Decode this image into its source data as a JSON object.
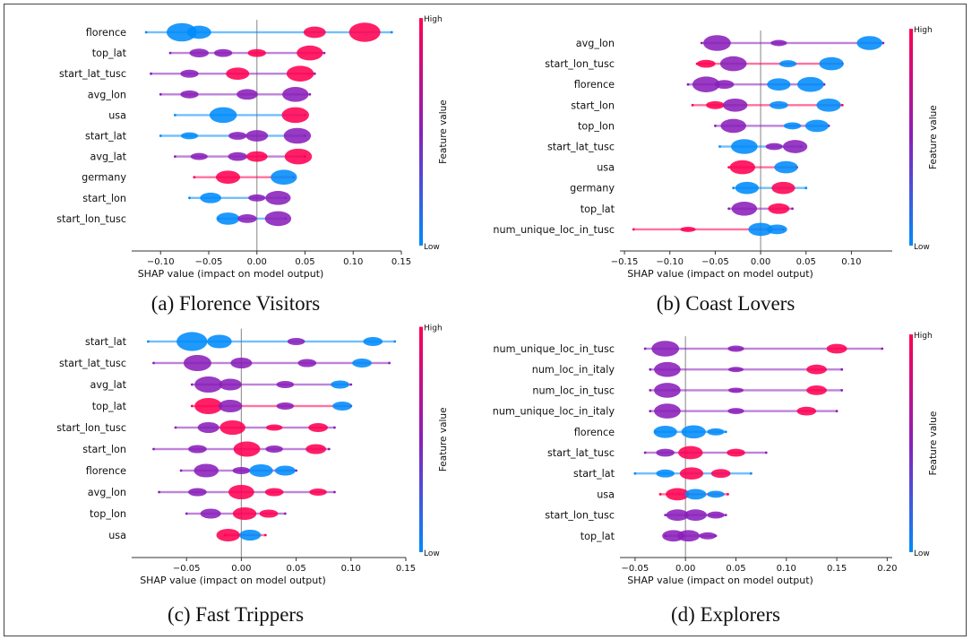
{
  "colors": {
    "high": "#ff0052",
    "low": "#008bfb",
    "mid": "#8a1fb9",
    "axis": "#333333",
    "zero": "#999999"
  },
  "chart_data": [
    {
      "type": "violin",
      "caption": "(a) Florence Visitors",
      "xlabel": "SHAP value (impact on model output)",
      "colorbar": {
        "label": "Feature value",
        "high": "High",
        "low": "Low"
      },
      "xlim": [
        -0.13,
        0.15
      ],
      "xticks": [
        -0.1,
        -0.05,
        0.0,
        0.05,
        0.1,
        0.15
      ],
      "xtick_labels": [
        "−0.10",
        "−0.05",
        "0.00",
        "0.05",
        "0.10",
        "0.15"
      ],
      "features": [
        {
          "name": "florence",
          "min": -0.115,
          "max": 0.14,
          "peaks": [
            [
              -0.078,
              0.9,
              "low"
            ],
            [
              -0.06,
              0.6,
              "low"
            ],
            [
              0.06,
              0.5,
              "high"
            ],
            [
              0.112,
              0.95,
              "high"
            ]
          ]
        },
        {
          "name": "top_lat",
          "min": -0.09,
          "max": 0.07,
          "peaks": [
            [
              -0.06,
              0.35,
              "mid"
            ],
            [
              -0.035,
              0.3,
              "mid"
            ],
            [
              0.0,
              0.3,
              "high"
            ],
            [
              0.055,
              0.7,
              "high"
            ]
          ]
        },
        {
          "name": "start_lat_tusc",
          "min": -0.11,
          "max": 0.06,
          "peaks": [
            [
              -0.07,
              0.3,
              "mid"
            ],
            [
              -0.02,
              0.55,
              "high"
            ],
            [
              0.045,
              0.75,
              "high"
            ]
          ]
        },
        {
          "name": "avg_lon",
          "min": -0.1,
          "max": 0.055,
          "peaks": [
            [
              -0.07,
              0.3,
              "mid"
            ],
            [
              -0.01,
              0.45,
              "mid"
            ],
            [
              0.04,
              0.7,
              "mid"
            ]
          ]
        },
        {
          "name": "usa",
          "min": -0.085,
          "max": 0.05,
          "peaks": [
            [
              -0.035,
              0.75,
              "low"
            ],
            [
              0.04,
              0.75,
              "high"
            ]
          ]
        },
        {
          "name": "start_lat",
          "min": -0.1,
          "max": 0.05,
          "peaks": [
            [
              -0.07,
              0.25,
              "low"
            ],
            [
              -0.02,
              0.3,
              "mid"
            ],
            [
              0.0,
              0.5,
              "mid"
            ],
            [
              0.042,
              0.75,
              "mid"
            ]
          ]
        },
        {
          "name": "avg_lat",
          "min": -0.085,
          "max": 0.05,
          "peaks": [
            [
              -0.06,
              0.25,
              "mid"
            ],
            [
              -0.02,
              0.35,
              "mid"
            ],
            [
              0.0,
              0.45,
              "high"
            ],
            [
              0.043,
              0.75,
              "high"
            ]
          ]
        },
        {
          "name": "germany",
          "min": -0.065,
          "max": 0.038,
          "peaks": [
            [
              -0.03,
              0.6,
              "high"
            ],
            [
              0.028,
              0.7,
              "low"
            ]
          ]
        },
        {
          "name": "start_lon",
          "min": -0.07,
          "max": 0.03,
          "peaks": [
            [
              -0.048,
              0.45,
              "low"
            ],
            [
              0.0,
              0.25,
              "mid"
            ],
            [
              0.022,
              0.65,
              "mid"
            ]
          ]
        },
        {
          "name": "start_lon_tusc",
          "min": -0.04,
          "max": 0.03,
          "peaks": [
            [
              -0.03,
              0.55,
              "low"
            ],
            [
              -0.01,
              0.35,
              "mid"
            ],
            [
              0.022,
              0.7,
              "mid"
            ]
          ]
        }
      ]
    },
    {
      "type": "violin",
      "caption": "(b) Coast Lovers",
      "xlabel": "SHAP value (impact on model output)",
      "colorbar": {
        "label": "Feature value",
        "high": "High",
        "low": "Low"
      },
      "xlim": [
        -0.155,
        0.145
      ],
      "xticks": [
        -0.15,
        -0.1,
        -0.05,
        0.0,
        0.05,
        0.1
      ],
      "xtick_labels": [
        "−0.15",
        "−0.10",
        "−0.05",
        "0.00",
        "0.05",
        "0.10"
      ],
      "features": [
        {
          "name": "avg_lon",
          "min": -0.065,
          "max": 0.135,
          "peaks": [
            [
              -0.048,
              0.75,
              "mid"
            ],
            [
              0.02,
              0.2,
              "mid"
            ],
            [
              0.12,
              0.65,
              "low"
            ]
          ]
        },
        {
          "name": "start_lon_tusc",
          "min": -0.07,
          "max": 0.09,
          "peaks": [
            [
              -0.06,
              0.3,
              "high"
            ],
            [
              -0.03,
              0.7,
              "mid"
            ],
            [
              0.03,
              0.25,
              "low"
            ],
            [
              0.078,
              0.6,
              "low"
            ]
          ]
        },
        {
          "name": "florence",
          "min": -0.08,
          "max": 0.07,
          "peaks": [
            [
              -0.06,
              0.75,
              "mid"
            ],
            [
              -0.04,
              0.35,
              "mid"
            ],
            [
              0.02,
              0.55,
              "low"
            ],
            [
              0.055,
              0.7,
              "low"
            ]
          ]
        },
        {
          "name": "start_lon",
          "min": -0.075,
          "max": 0.09,
          "peaks": [
            [
              -0.05,
              0.3,
              "high"
            ],
            [
              -0.028,
              0.6,
              "mid"
            ],
            [
              0.02,
              0.3,
              "low"
            ],
            [
              0.075,
              0.6,
              "low"
            ]
          ]
        },
        {
          "name": "top_lon",
          "min": -0.05,
          "max": 0.075,
          "peaks": [
            [
              -0.03,
              0.65,
              "mid"
            ],
            [
              0.035,
              0.25,
              "low"
            ],
            [
              0.062,
              0.55,
              "low"
            ]
          ]
        },
        {
          "name": "start_lat_tusc",
          "min": -0.045,
          "max": 0.045,
          "peaks": [
            [
              -0.018,
              0.7,
              "low"
            ],
            [
              0.015,
              0.25,
              "mid"
            ],
            [
              0.038,
              0.6,
              "mid"
            ]
          ]
        },
        {
          "name": "usa",
          "min": -0.035,
          "max": 0.04,
          "peaks": [
            [
              -0.02,
              0.65,
              "high"
            ],
            [
              0.028,
              0.55,
              "low"
            ]
          ]
        },
        {
          "name": "germany",
          "min": -0.03,
          "max": 0.05,
          "peaks": [
            [
              -0.015,
              0.55,
              "low"
            ],
            [
              0.025,
              0.55,
              "high"
            ]
          ]
        },
        {
          "name": "top_lat",
          "min": -0.035,
          "max": 0.035,
          "peaks": [
            [
              -0.018,
              0.65,
              "mid"
            ],
            [
              0.02,
              0.45,
              "high"
            ]
          ]
        },
        {
          "name": "num_unique_loc_in_tusc",
          "min": -0.14,
          "max": 0.025,
          "peaks": [
            [
              -0.08,
              0.15,
              "high"
            ],
            [
              0.0,
              0.6,
              "low"
            ],
            [
              0.018,
              0.4,
              "low"
            ]
          ]
        }
      ]
    },
    {
      "type": "violin",
      "caption": "(c) Fast Trippers",
      "xlabel": "SHAP value (impact on model output)",
      "colorbar": {
        "label": "Feature value",
        "high": "High",
        "low": "Low"
      },
      "xlim": [
        -0.1,
        0.15
      ],
      "xticks": [
        -0.05,
        0.0,
        0.05,
        0.1,
        0.15
      ],
      "xtick_labels": [
        "−0.05",
        "0.00",
        "0.05",
        "0.10",
        "0.15"
      ],
      "features": [
        {
          "name": "start_lat",
          "min": -0.085,
          "max": 0.14,
          "peaks": [
            [
              -0.045,
              0.9,
              "low"
            ],
            [
              -0.02,
              0.6,
              "low"
            ],
            [
              0.05,
              0.25,
              "mid"
            ],
            [
              0.12,
              0.35,
              "low"
            ]
          ]
        },
        {
          "name": "start_lat_tusc",
          "min": -0.08,
          "max": 0.135,
          "peaks": [
            [
              -0.04,
              0.75,
              "mid"
            ],
            [
              0.0,
              0.45,
              "mid"
            ],
            [
              0.06,
              0.3,
              "mid"
            ],
            [
              0.11,
              0.35,
              "low"
            ]
          ]
        },
        {
          "name": "avg_lat",
          "min": -0.045,
          "max": 0.1,
          "peaks": [
            [
              -0.03,
              0.75,
              "mid"
            ],
            [
              -0.01,
              0.5,
              "mid"
            ],
            [
              0.04,
              0.25,
              "mid"
            ],
            [
              0.09,
              0.3,
              "low"
            ]
          ]
        },
        {
          "name": "top_lat",
          "min": -0.045,
          "max": 0.1,
          "peaks": [
            [
              -0.03,
              0.75,
              "high"
            ],
            [
              -0.01,
              0.55,
              "mid"
            ],
            [
              0.04,
              0.25,
              "mid"
            ],
            [
              0.092,
              0.35,
              "low"
            ]
          ]
        },
        {
          "name": "start_lon_tusc",
          "min": -0.06,
          "max": 0.085,
          "peaks": [
            [
              -0.03,
              0.45,
              "mid"
            ],
            [
              -0.008,
              0.65,
              "high"
            ],
            [
              0.03,
              0.2,
              "high"
            ],
            [
              0.07,
              0.35,
              "high"
            ]
          ]
        },
        {
          "name": "start_lon",
          "min": -0.08,
          "max": 0.08,
          "peaks": [
            [
              -0.04,
              0.3,
              "mid"
            ],
            [
              0.005,
              0.7,
              "high"
            ],
            [
              0.03,
              0.25,
              "mid"
            ],
            [
              0.068,
              0.4,
              "high"
            ]
          ]
        },
        {
          "name": "florence",
          "min": -0.055,
          "max": 0.05,
          "peaks": [
            [
              -0.032,
              0.6,
              "mid"
            ],
            [
              0.0,
              0.25,
              "mid"
            ],
            [
              0.018,
              0.55,
              "low"
            ],
            [
              0.04,
              0.4,
              "low"
            ]
          ]
        },
        {
          "name": "avg_lon",
          "min": -0.075,
          "max": 0.085,
          "peaks": [
            [
              -0.04,
              0.3,
              "mid"
            ],
            [
              0.0,
              0.65,
              "high"
            ],
            [
              0.03,
              0.3,
              "high"
            ],
            [
              0.07,
              0.25,
              "high"
            ]
          ]
        },
        {
          "name": "top_lon",
          "min": -0.05,
          "max": 0.04,
          "peaks": [
            [
              -0.028,
              0.4,
              "mid"
            ],
            [
              0.003,
              0.55,
              "high"
            ],
            [
              0.025,
              0.3,
              "high"
            ]
          ]
        },
        {
          "name": "usa",
          "min": -0.015,
          "max": 0.022,
          "peaks": [
            [
              -0.012,
              0.55,
              "high"
            ],
            [
              0.008,
              0.45,
              "low"
            ]
          ]
        }
      ]
    },
    {
      "type": "violin",
      "caption": "(d) Explorers",
      "xlabel": "SHAP value (impact on model output)",
      "colorbar": {
        "label": "Feature value",
        "high": "High",
        "low": "Low"
      },
      "xlim": [
        -0.065,
        0.205
      ],
      "xticks": [
        -0.05,
        0.0,
        0.05,
        0.1,
        0.15,
        0.2
      ],
      "xtick_labels": [
        "−0.05",
        "0.00",
        "0.05",
        "0.10",
        "0.15",
        "0.20"
      ],
      "features": [
        {
          "name": "num_unique_loc_in_tusc",
          "min": -0.04,
          "max": 0.195,
          "peaks": [
            [
              -0.02,
              0.75,
              "mid"
            ],
            [
              0.05,
              0.2,
              "mid"
            ],
            [
              0.15,
              0.4,
              "high"
            ]
          ]
        },
        {
          "name": "num_loc_in_italy",
          "min": -0.035,
          "max": 0.155,
          "peaks": [
            [
              -0.018,
              0.7,
              "mid"
            ],
            [
              0.05,
              0.15,
              "mid"
            ],
            [
              0.13,
              0.4,
              "high"
            ]
          ]
        },
        {
          "name": "num_loc_in_tusc",
          "min": -0.035,
          "max": 0.155,
          "peaks": [
            [
              -0.018,
              0.7,
              "mid"
            ],
            [
              0.05,
              0.15,
              "mid"
            ],
            [
              0.13,
              0.4,
              "high"
            ]
          ]
        },
        {
          "name": "num_unique_loc_in_italy",
          "min": -0.035,
          "max": 0.15,
          "peaks": [
            [
              -0.018,
              0.7,
              "mid"
            ],
            [
              0.05,
              0.2,
              "mid"
            ],
            [
              0.12,
              0.35,
              "high"
            ]
          ]
        },
        {
          "name": "florence",
          "min": -0.03,
          "max": 0.04,
          "peaks": [
            [
              -0.02,
              0.55,
              "low"
            ],
            [
              0.008,
              0.6,
              "low"
            ],
            [
              0.03,
              0.25,
              "low"
            ]
          ]
        },
        {
          "name": "start_lat_tusc",
          "min": -0.04,
          "max": 0.08,
          "peaks": [
            [
              -0.02,
              0.3,
              "mid"
            ],
            [
              0.005,
              0.6,
              "high"
            ],
            [
              0.05,
              0.3,
              "high"
            ]
          ]
        },
        {
          "name": "start_lat",
          "min": -0.05,
          "max": 0.065,
          "peaks": [
            [
              -0.02,
              0.3,
              "low"
            ],
            [
              0.006,
              0.55,
              "high"
            ],
            [
              0.035,
              0.35,
              "high"
            ]
          ]
        },
        {
          "name": "usa",
          "min": -0.025,
          "max": 0.042,
          "peaks": [
            [
              -0.008,
              0.55,
              "high"
            ],
            [
              0.01,
              0.45,
              "low"
            ],
            [
              0.03,
              0.25,
              "low"
            ]
          ]
        },
        {
          "name": "start_lon_tusc",
          "min": -0.02,
          "max": 0.04,
          "peaks": [
            [
              -0.008,
              0.5,
              "mid"
            ],
            [
              0.01,
              0.5,
              "mid"
            ],
            [
              0.03,
              0.25,
              "mid"
            ]
          ]
        },
        {
          "name": "top_lat",
          "min": -0.02,
          "max": 0.03,
          "peaks": [
            [
              -0.012,
              0.5,
              "mid"
            ],
            [
              0.003,
              0.5,
              "mid"
            ],
            [
              0.022,
              0.25,
              "mid"
            ]
          ]
        }
      ]
    }
  ]
}
